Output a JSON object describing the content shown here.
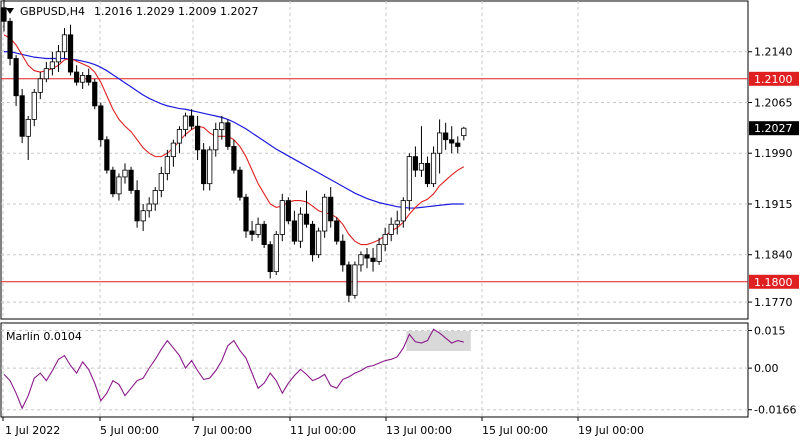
{
  "header": {
    "symbol": "GBPUSD,H4",
    "ohlc": "1.2016 1.2029 1.2009 1.2027"
  },
  "colors": {
    "bull": "#ffffff",
    "bear": "#000000",
    "ma_fast": "#e02020",
    "ma_slow": "#1a1adc",
    "hline": "#e02020",
    "oscillator": "#8a1a8a",
    "grid": "#c8c8c8"
  },
  "chart_data": [
    {
      "type": "candlestick",
      "title": "GBPUSD,H4",
      "y_ticks": [
        "1.2140",
        "1.2065",
        "1.1990",
        "1.1915",
        "1.1840",
        "1.1770"
      ],
      "x_ticks": [
        "1 Jul 2022",
        "5 Jul 00:00",
        "7 Jul 00:00",
        "11 Jul 00:00",
        "13 Jul 00:00",
        "15 Jul 00:00",
        "19 Jul 00:00"
      ],
      "ylim": [
        1.1745,
        1.2215
      ],
      "last_price": "1.2027",
      "horizontal_levels": [
        {
          "value": 1.21,
          "label": "1.2100"
        },
        {
          "value": 1.18,
          "label": "1.1800"
        }
      ],
      "candles": [
        [
          1.2205,
          1.2225,
          1.217,
          1.2185
        ],
        [
          1.2185,
          1.219,
          1.212,
          1.213
        ],
        [
          1.213,
          1.2135,
          1.206,
          1.2075
        ],
        [
          1.2075,
          1.2085,
          1.2005,
          1.2015
        ],
        [
          1.2015,
          1.2045,
          1.198,
          1.204
        ],
        [
          1.204,
          1.2085,
          1.203,
          1.208
        ],
        [
          1.208,
          1.211,
          1.207,
          1.21
        ],
        [
          1.21,
          1.2125,
          1.2095,
          1.2115
        ],
        [
          1.2115,
          1.214,
          1.2105,
          1.2125
        ],
        [
          1.2125,
          1.215,
          1.211,
          1.214
        ],
        [
          1.214,
          1.2175,
          1.213,
          1.2165
        ],
        [
          1.2165,
          1.218,
          1.2105,
          1.211
        ],
        [
          1.211,
          1.212,
          1.209,
          1.2095
        ],
        [
          1.2095,
          1.211,
          1.2085,
          1.2105
        ],
        [
          1.2105,
          1.2115,
          1.209,
          1.2095
        ],
        [
          1.2095,
          1.21,
          1.2055,
          1.206
        ],
        [
          1.206,
          1.2065,
          1.2,
          1.201
        ],
        [
          1.201,
          1.2015,
          1.196,
          1.1965
        ],
        [
          1.1965,
          1.197,
          1.1925,
          1.193
        ],
        [
          1.193,
          1.196,
          1.192,
          1.1955
        ],
        [
          1.1955,
          1.1975,
          1.1945,
          1.1965
        ],
        [
          1.1965,
          1.197,
          1.193,
          1.1935
        ],
        [
          1.1935,
          1.195,
          1.188,
          1.189
        ],
        [
          1.189,
          1.1915,
          1.1875,
          1.1905
        ],
        [
          1.1905,
          1.1925,
          1.1895,
          1.1915
        ],
        [
          1.1915,
          1.194,
          1.1905,
          1.1935
        ],
        [
          1.1935,
          1.197,
          1.1925,
          1.196
        ],
        [
          1.196,
          1.1995,
          1.195,
          1.1985
        ],
        [
          1.1985,
          1.201,
          1.197,
          1.2005
        ],
        [
          1.2005,
          1.203,
          1.199,
          1.2025
        ],
        [
          1.2025,
          1.205,
          1.2015,
          1.2045
        ],
        [
          1.2045,
          1.2055,
          1.2025,
          1.203
        ],
        [
          1.203,
          1.2045,
          1.198,
          1.1995
        ],
        [
          1.1995,
          1.2005,
          1.1935,
          1.1945
        ],
        [
          1.1945,
          1.2,
          1.1935,
          1.1995
        ],
        [
          1.1995,
          1.2035,
          1.1985,
          1.2025
        ],
        [
          1.2025,
          1.2045,
          1.201,
          1.2035
        ],
        [
          1.2035,
          1.204,
          1.1995,
          1.2
        ],
        [
          1.2,
          1.201,
          1.196,
          1.1965
        ],
        [
          1.1965,
          1.197,
          1.192,
          1.1925
        ],
        [
          1.1925,
          1.193,
          1.1865,
          1.1875
        ],
        [
          1.1875,
          1.189,
          1.186,
          1.187
        ],
        [
          1.187,
          1.1895,
          1.1865,
          1.1885
        ],
        [
          1.1885,
          1.189,
          1.185,
          1.1855
        ],
        [
          1.1855,
          1.186,
          1.1805,
          1.1815
        ],
        [
          1.1815,
          1.1875,
          1.181,
          1.187
        ],
        [
          1.187,
          1.193,
          1.186,
          1.192
        ],
        [
          1.192,
          1.1925,
          1.1885,
          1.189
        ],
        [
          1.189,
          1.1905,
          1.1855,
          1.186
        ],
        [
          1.186,
          1.191,
          1.185,
          1.19
        ],
        [
          1.19,
          1.1935,
          1.188,
          1.1885
        ],
        [
          1.1885,
          1.189,
          1.183,
          1.184
        ],
        [
          1.184,
          1.188,
          1.1835,
          1.1875
        ],
        [
          1.1875,
          1.193,
          1.1865,
          1.1925
        ],
        [
          1.1925,
          1.194,
          1.188,
          1.189
        ],
        [
          1.189,
          1.1895,
          1.1855,
          1.186
        ],
        [
          1.186,
          1.187,
          1.1815,
          1.1825
        ],
        [
          1.1825,
          1.183,
          1.177,
          1.178
        ],
        [
          1.178,
          1.183,
          1.1775,
          1.1825
        ],
        [
          1.1825,
          1.1845,
          1.1815,
          1.184
        ],
        [
          1.184,
          1.185,
          1.182,
          1.1835
        ],
        [
          1.1835,
          1.185,
          1.1815,
          1.183
        ],
        [
          1.183,
          1.1865,
          1.1825,
          1.1855
        ],
        [
          1.1855,
          1.188,
          1.1845,
          1.187
        ],
        [
          1.187,
          1.1895,
          1.186,
          1.1885
        ],
        [
          1.1885,
          1.1905,
          1.187,
          1.189
        ],
        [
          1.189,
          1.1925,
          1.188,
          1.192
        ],
        [
          1.192,
          1.199,
          1.1905,
          1.1985
        ],
        [
          1.1985,
          1.2,
          1.1955,
          1.1965
        ],
        [
          1.1965,
          1.203,
          1.1955,
          1.1975
        ],
        [
          1.1975,
          1.1985,
          1.194,
          1.1945
        ],
        [
          1.1945,
          1.2,
          1.194,
          1.199
        ],
        [
          1.199,
          1.204,
          1.196,
          1.202
        ],
        [
          1.202,
          1.2035,
          1.1995,
          1.201
        ],
        [
          1.201,
          1.203,
          1.199,
          1.2005
        ],
        [
          1.2005,
          1.2015,
          1.199,
          1.2
        ],
        [
          1.2016,
          1.2029,
          1.2009,
          1.2027
        ]
      ],
      "ma_fast": [
        1.2165,
        1.216,
        1.215,
        1.2135,
        1.212,
        1.2112,
        1.211,
        1.2112,
        1.2115,
        1.212,
        1.2128,
        1.213,
        1.2126,
        1.2122,
        1.2118,
        1.211,
        1.2095,
        1.2075,
        1.2055,
        1.204,
        1.203,
        1.2022,
        1.201,
        1.1998,
        1.199,
        1.1985,
        1.1985,
        1.199,
        1.1998,
        1.2008,
        1.2018,
        1.2025,
        1.203,
        1.2028,
        1.202,
        1.2015,
        1.2015,
        1.2015,
        1.201,
        1.2,
        1.1985,
        1.1965,
        1.1945,
        1.193,
        1.1915,
        1.191,
        1.1912,
        1.1918,
        1.192,
        1.192,
        1.1918,
        1.1912,
        1.1905,
        1.1902,
        1.19,
        1.1895,
        1.1885,
        1.187,
        1.186,
        1.1855,
        1.1855,
        1.1858,
        1.1862,
        1.1868,
        1.1875,
        1.188,
        1.1888,
        1.19,
        1.191,
        1.1918,
        1.1922,
        1.193,
        1.1942,
        1.195,
        1.1958,
        1.1965,
        1.197
      ],
      "ma_slow": [
        1.214,
        1.214,
        1.2138,
        1.2136,
        1.2134,
        1.2132,
        1.2131,
        1.213,
        1.213,
        1.213,
        1.213,
        1.2129,
        1.2128,
        1.2126,
        1.2124,
        1.2121,
        1.2117,
        1.2112,
        1.2106,
        1.21,
        1.2094,
        1.2088,
        1.2082,
        1.2076,
        1.2071,
        1.2067,
        1.2063,
        1.206,
        1.2058,
        1.2056,
        1.2055,
        1.2053,
        1.2051,
        1.2049,
        1.2047,
        1.2045,
        1.2043,
        1.204,
        1.2036,
        1.2031,
        1.2026,
        1.202,
        1.2014,
        1.2008,
        1.2002,
        1.1996,
        1.1991,
        1.1986,
        1.1981,
        1.1976,
        1.1971,
        1.1966,
        1.1961,
        1.1956,
        1.1951,
        1.1946,
        1.1941,
        1.1936,
        1.1931,
        1.1927,
        1.1923,
        1.192,
        1.1917,
        1.1915,
        1.1913,
        1.1911,
        1.191,
        1.1909,
        1.1909,
        1.191,
        1.1911,
        1.1912,
        1.1913,
        1.1914,
        1.1915,
        1.1915,
        1.1915
      ]
    },
    {
      "type": "line",
      "title": "Marlin 0.0104",
      "y_ticks": [
        "0.015",
        "0.00",
        "-0.0166"
      ],
      "ylim": [
        -0.0195,
        0.018
      ],
      "zero": 0.0,
      "values": [
        -0.0025,
        -0.005,
        -0.01,
        -0.016,
        -0.011,
        -0.004,
        -0.002,
        -0.005,
        -0.001,
        0.0035,
        0.005,
        0.001,
        -0.002,
        0.0025,
        -0.0005,
        -0.006,
        -0.013,
        -0.01,
        -0.005,
        -0.0065,
        -0.011,
        -0.008,
        -0.005,
        -0.004,
        0.0,
        0.0035,
        0.0075,
        0.011,
        0.008,
        0.005,
        0.0,
        0.003,
        -0.001,
        -0.0045,
        -0.004,
        -0.001,
        0.003,
        0.009,
        0.011,
        0.007,
        0.004,
        -0.002,
        -0.008,
        -0.006,
        -0.002,
        -0.005,
        -0.01,
        -0.006,
        -0.003,
        -0.0005,
        -0.0025,
        -0.005,
        -0.004,
        -0.0025,
        -0.007,
        -0.008,
        -0.0045,
        -0.0035,
        -0.002,
        -0.001,
        0.0005,
        0.001,
        0.002,
        0.003,
        0.0035,
        0.0045,
        0.008,
        0.0135,
        0.0105,
        0.01,
        0.011,
        0.0155,
        0.014,
        0.012,
        0.01,
        0.011,
        0.0104
      ],
      "shaded_range": [
        67,
        76
      ]
    }
  ]
}
